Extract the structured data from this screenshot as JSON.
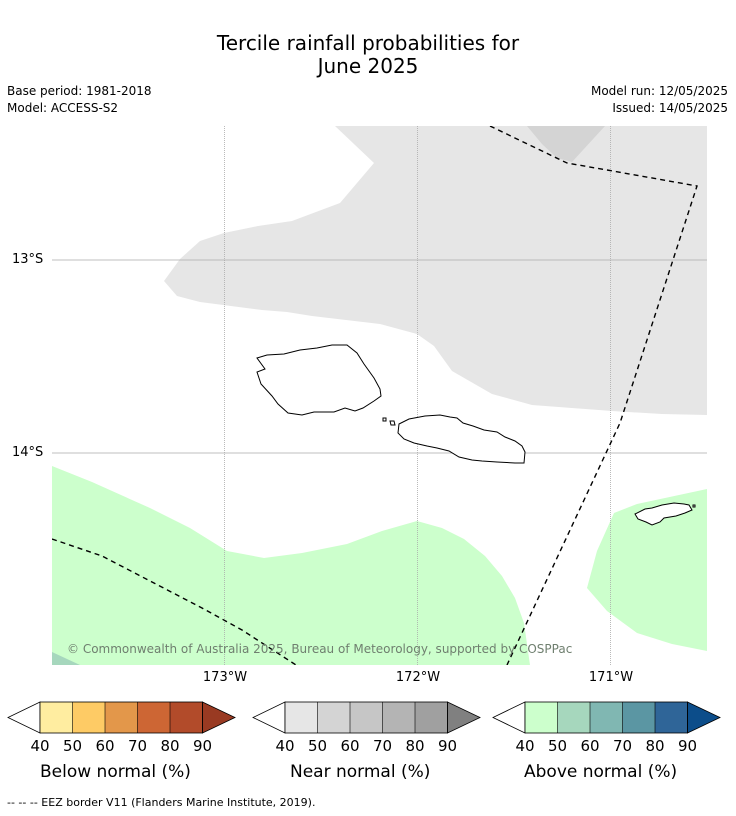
{
  "title": {
    "line1": "Tercile rainfall probabilities for",
    "line2": "June 2025"
  },
  "meta": {
    "base_period": "Base period: 1981-2018",
    "model": "Model: ACCESS-S2",
    "model_run": "Model run: 12/05/2025",
    "issued": "Issued: 14/05/2025"
  },
  "map": {
    "lat_labels": [
      "13°S",
      "14°S"
    ],
    "lon_labels": [
      "173°W",
      "172°W",
      "171°W"
    ],
    "copyright": "© Commonwealth of Australia 2025, Bureau of Meteorology, supported by COSPPac",
    "colors": {
      "near_normal_40": "#e6e6e6",
      "near_normal_50": "#d4d4d4",
      "above_normal_40": "#ccffcc",
      "above_normal_50": "#a6d7bd"
    }
  },
  "legends": [
    {
      "title": "Below normal (%)",
      "ticks": [
        "40",
        "50",
        "60",
        "70",
        "80",
        "90"
      ],
      "colors": [
        "#ffeda0",
        "#fecb65",
        "#e3974a",
        "#cd6634",
        "#b24b2a",
        "#993a22"
      ]
    },
    {
      "title": "Near normal (%)",
      "ticks": [
        "40",
        "50",
        "60",
        "70",
        "80",
        "90"
      ],
      "colors": [
        "#e6e6e6",
        "#d4d4d4",
        "#c6c6c6",
        "#b4b4b4",
        "#a0a0a0",
        "#808080"
      ]
    },
    {
      "title": "Above normal (%)",
      "ticks": [
        "40",
        "50",
        "60",
        "70",
        "80",
        "90"
      ],
      "colors": [
        "#ccffcc",
        "#a6d7bd",
        "#80b7b2",
        "#5b96a3",
        "#2f6598",
        "#0c4d8a"
      ]
    }
  ],
  "footnote": "-- -- -- EEZ border V11 (Flanders Marine Institute, 2019)."
}
